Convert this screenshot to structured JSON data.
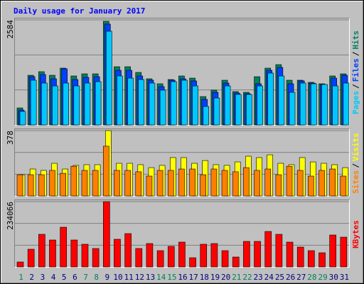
{
  "title": "Daily usage for January 2017",
  "chart_data": [
    {
      "type": "bar",
      "ylim": [
        0,
        2584
      ],
      "yticks": [
        2584
      ],
      "legend_separator": "/",
      "series": [
        {
          "name": "Hits",
          "color": "#00805c",
          "values": [
            419,
            1222,
            1310,
            1222,
            1397,
            1205,
            1257,
            1257,
            2549,
            1432,
            1432,
            1292,
            1135,
            1013,
            1117,
            1205,
            1152,
            698,
            856,
            1100,
            821,
            803,
            1187,
            1397,
            1484,
            1100,
            1100,
            1048,
            1013,
            1205,
            1257
          ]
        },
        {
          "name": "Files",
          "color": "#0040ff",
          "values": [
            367,
            1187,
            1240,
            1135,
            1380,
            1117,
            1170,
            1187,
            2480,
            1344,
            1344,
            1205,
            1100,
            943,
            1100,
            1135,
            1083,
            629,
            803,
            1030,
            786,
            768,
            1013,
            1344,
            1414,
            1013,
            1083,
            1030,
            995,
            1152,
            1222
          ]
        },
        {
          "name": "Pages",
          "color": "#00c8ff",
          "values": [
            332,
            1100,
            1030,
            960,
            1030,
            960,
            1030,
            1065,
            2305,
            1205,
            1152,
            1117,
            1030,
            856,
            1065,
            1100,
            960,
            454,
            663,
            960,
            751,
            751,
            960,
            1275,
            1205,
            803,
            1030,
            1013,
            995,
            960,
            1030
          ]
        }
      ]
    },
    {
      "type": "bar",
      "ylim": [
        0,
        378
      ],
      "yticks": [
        378
      ],
      "legend_separator": "/",
      "series": [
        {
          "name": "Visits",
          "color": "#ffff00",
          "values": [
            123,
            156,
            148,
            189,
            156,
            177,
            181,
            181,
            378,
            189,
            189,
            181,
            164,
            177,
            222,
            222,
            189,
            205,
            181,
            177,
            197,
            230,
            222,
            238,
            189,
            181,
            222,
            197,
            189,
            181,
            164
          ]
        },
        {
          "name": "Sites",
          "color": "#ff8000",
          "values": [
            123,
            123,
            123,
            148,
            131,
            172,
            148,
            148,
            288,
            148,
            148,
            140,
            115,
            148,
            148,
            156,
            156,
            123,
            156,
            148,
            140,
            164,
            148,
            156,
            123,
            172,
            148,
            115,
            148,
            156,
            115
          ]
        }
      ]
    },
    {
      "type": "bar",
      "ylim": [
        0,
        234066
      ],
      "yticks": [
        234066
      ],
      "legend_separator": "/",
      "categories": [
        "1",
        "2",
        "3",
        "4",
        "5",
        "6",
        "7",
        "8",
        "9",
        "10",
        "11",
        "12",
        "13",
        "14",
        "15",
        "16",
        "17",
        "18",
        "19",
        "20",
        "21",
        "22",
        "23",
        "24",
        "25",
        "26",
        "27",
        "28",
        "29",
        "30",
        "31"
      ],
      "category_colors": [
        "#00805c",
        "#000080",
        "#000080",
        "#000080",
        "#000080",
        "#000080",
        "#00805c",
        "#00805c",
        "#000080",
        "#000080",
        "#000080",
        "#000080",
        "#000080",
        "#00805c",
        "#00805c",
        "#000080",
        "#000080",
        "#000080",
        "#000080",
        "#000080",
        "#00805c",
        "#00805c",
        "#000080",
        "#000080",
        "#000080",
        "#000080",
        "#000080",
        "#00805c",
        "#00805c",
        "#000080",
        "#000080"
      ],
      "series": [
        {
          "name": "KBytes",
          "color": "#ff0000",
          "values": [
            17808,
            63600,
            117024,
            96672,
            142464,
            96672,
            81408,
            66144,
            234066,
            99216,
            119568,
            66144,
            83952,
            58512,
            73776,
            89040,
            33072,
            81408,
            83952,
            58512,
            35616,
            91584,
            91584,
            127200,
            117024,
            89040,
            71232,
            58512,
            50880,
            114480,
            106848
          ]
        }
      ]
    }
  ]
}
